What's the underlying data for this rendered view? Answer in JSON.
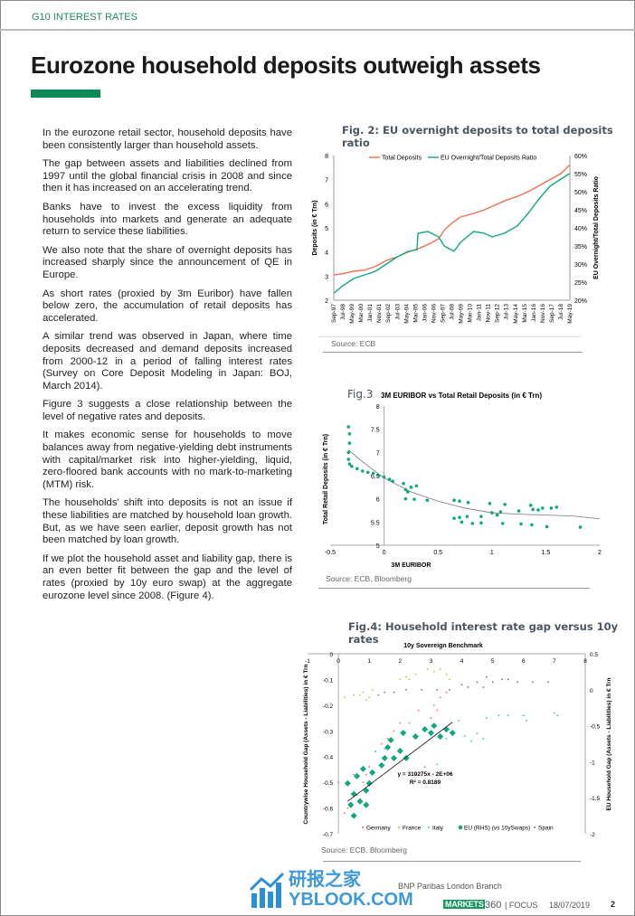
{
  "header": {
    "section": "G10 INTEREST RATES"
  },
  "page_title": "Eurozone household deposits outweigh assets",
  "colors": {
    "accent": "#0b8a58",
    "section": "#1a8a5e",
    "orange": "#f07050",
    "teal": "#10a880",
    "france": "#b0cc40",
    "spain": "#707070"
  },
  "paragraphs": [
    "In the eurozone retail sector, household deposits have been consistently larger than household assets.",
    "The gap between assets and liabilities declined from 1997 until the global financial crisis in 2008 and since then it has increased on an accelerating trend.",
    "Banks have to invest the excess liquidity from households into markets and generate an adequate return to service these liabilities.",
    "We also note that the share of overnight deposits has increased sharply since the announcement of QE in Europe.",
    "As short rates (proxied by 3m Euribor) have fallen below zero, the accumulation of retail deposits has accelerated.",
    "A similar trend was observed in Japan, where time deposits decreased and demand deposits increased from 2000-12 in a period of falling interest rates (Survey on Core Deposit Modeling in Japan: BOJ, March 2014).",
    "Figure 3 suggests a close relationship between the level of negative rates and deposits.",
    "It makes economic sense for households to move balances away from negative-yielding debt instruments with capital/market risk into higher-yielding, liquid, zero-floored bank accounts with no mark-to-marketing (MTM) risk.",
    "The households' shift into deposits is not an issue if these liabilities are matched by household loan growth. But, as we have seen earlier, deposit growth has not been matched by loan growth.",
    "If we plot the household asset and liability gap, there is an even better fit between the gap and the level of rates (proxied by 10y euro swap) at the aggregate eurozone level since 2008. (Figure 4)."
  ],
  "fig2": {
    "title": "Fig. 2: EU overnight deposits to total deposits ratio",
    "source": "Source: ECB"
  },
  "fig3": {
    "label": "Fig.3",
    "source": "Source: ECB, Bloomberg"
  },
  "fig4": {
    "title": "Fig.4: Household interest rate gap versus 10y rates",
    "source": "Source: ECB, Bloomberg"
  },
  "chart_data": [
    {
      "type": "line",
      "ylabel": "Deposits (in € Trn)",
      "y2label": "EU Overnight/Total Deposits Ratio",
      "ylim": [
        2,
        8
      ],
      "y2lim": [
        20,
        60
      ],
      "yticks": [
        "2",
        "3",
        "4",
        "5",
        "6",
        "7",
        "8"
      ],
      "y2ticks": [
        "20%",
        "25%",
        "30%",
        "35%",
        "40%",
        "45%",
        "50%",
        "55%",
        "60%"
      ],
      "xticks": [
        "Sep-97",
        "Jul-98",
        "May-99",
        "Mar-00",
        "Jan-01",
        "Nov-01",
        "Sep-02",
        "Jul-03",
        "May-04",
        "Mar-05",
        "Jan-06",
        "Nov-06",
        "Sep-07",
        "Jul-08",
        "May-09",
        "Mar-10",
        "Jan-11",
        "Nov-11",
        "Sep-12",
        "Jul-13",
        "May-14",
        "Mar-15",
        "Jan-16",
        "Nov-16",
        "Sep-17",
        "Jul-18",
        "May-19"
      ],
      "series": [
        {
          "name": "Total Deposits",
          "axis": "left",
          "x": [
            1997.7,
            1998.5,
            1999.5,
            2000.5,
            2001.5,
            2002.5,
            2003.5,
            2004.5,
            2005.5,
            2006.5,
            2007.3,
            2007.8,
            2008.5,
            2009.3,
            2010.5,
            2011.5,
            2012.5,
            2013.5,
            2014.5,
            2015.5,
            2016.5,
            2017.5,
            2018.5,
            2019.3
          ],
          "y": [
            3.05,
            3.1,
            3.2,
            3.25,
            3.4,
            3.65,
            3.8,
            4.0,
            4.15,
            4.35,
            4.55,
            4.9,
            5.2,
            5.45,
            5.6,
            5.75,
            5.95,
            6.15,
            6.3,
            6.5,
            6.75,
            7.0,
            7.25,
            7.6
          ]
        },
        {
          "name": "EU Overnight/Total Deposits Ratio",
          "axis": "right",
          "x": [
            1997.7,
            1998.5,
            1999.5,
            2000.5,
            2001.5,
            2002.5,
            2003.5,
            2004.5,
            2005.3,
            2005.4,
            2006.3,
            2007.3,
            2007.8,
            2008.7,
            2009.3,
            2010.5,
            2011.5,
            2012.2,
            2013.3,
            2014.5,
            2015.5,
            2016.5,
            2017.5,
            2018.5,
            2019.3
          ],
          "y": [
            22,
            24,
            26,
            27,
            28,
            30,
            32,
            33.5,
            34,
            38.5,
            39,
            37.5,
            35,
            33.5,
            36,
            39,
            38.5,
            37.5,
            38.5,
            40.5,
            44,
            48,
            51.5,
            53.5,
            55
          ]
        }
      ]
    },
    {
      "type": "scatter",
      "title": "3M EURIBOR vs Total Retail Deposits (in € Trn)",
      "xlabel": "3M EURIBOR",
      "ylabel": "Total Retail Deposits (in € Trn)",
      "xlim": [
        -0.5,
        2
      ],
      "ylim": [
        5,
        8
      ],
      "xticks": [
        "-0.5",
        "0",
        "0.5",
        "1",
        "1.5",
        "2"
      ],
      "yticks": [
        "5",
        "5.5",
        "6",
        "6.5",
        "7",
        "7.5",
        "8"
      ],
      "points": [
        [
          -0.33,
          7.55
        ],
        [
          -0.32,
          7.4
        ],
        [
          -0.32,
          7.2
        ],
        [
          -0.33,
          7.0
        ],
        [
          -0.33,
          6.85
        ],
        [
          -0.32,
          6.75
        ],
        [
          -0.3,
          6.7
        ],
        [
          -0.25,
          6.65
        ],
        [
          -0.2,
          6.6
        ],
        [
          -0.15,
          6.57
        ],
        [
          -0.1,
          6.55
        ],
        [
          -0.05,
          6.5
        ],
        [
          0.0,
          6.47
        ],
        [
          0.05,
          6.42
        ],
        [
          0.08,
          6.38
        ],
        [
          0.18,
          6.33
        ],
        [
          0.2,
          6.2
        ],
        [
          0.22,
          6.15
        ],
        [
          0.25,
          6.25
        ],
        [
          0.3,
          6.28
        ],
        [
          0.2,
          6.0
        ],
        [
          0.28,
          5.99
        ],
        [
          0.4,
          5.97
        ],
        [
          0.65,
          5.97
        ],
        [
          0.7,
          5.95
        ],
        [
          0.78,
          5.92
        ],
        [
          0.65,
          5.58
        ],
        [
          0.7,
          5.6
        ],
        [
          0.72,
          5.5
        ],
        [
          0.77,
          5.62
        ],
        [
          0.82,
          5.47
        ],
        [
          0.9,
          5.62
        ],
        [
          0.9,
          5.48
        ],
        [
          0.98,
          5.9
        ],
        [
          1.0,
          5.7
        ],
        [
          1.05,
          5.65
        ],
        [
          1.1,
          5.47
        ],
        [
          1.12,
          5.88
        ],
        [
          1.08,
          5.72
        ],
        [
          1.25,
          5.74
        ],
        [
          1.27,
          5.46
        ],
        [
          1.36,
          5.86
        ],
        [
          1.38,
          5.77
        ],
        [
          1.43,
          5.76
        ],
        [
          1.47,
          5.8
        ],
        [
          1.55,
          5.8
        ],
        [
          1.6,
          5.82
        ],
        [
          1.37,
          5.44
        ],
        [
          1.51,
          5.4
        ],
        [
          1.82,
          5.39
        ]
      ],
      "trendline": [
        [
          -0.33,
          7.05
        ],
        [
          -0.2,
          6.8
        ],
        [
          0,
          6.45
        ],
        [
          0.25,
          6.15
        ],
        [
          0.5,
          5.95
        ],
        [
          0.75,
          5.8
        ],
        [
          1,
          5.7
        ],
        [
          1.25,
          5.67
        ],
        [
          1.5,
          5.65
        ],
        [
          1.75,
          5.63
        ],
        [
          2,
          5.57
        ]
      ]
    },
    {
      "type": "scatter",
      "title": "10y Sovereign Benchmark",
      "ylabel": "Countrywise Household Gap (Assets - Liabilities) in € Trn",
      "y2label": "EU Household Gap (Assets - Liabilities) in € Trn",
      "xlim": [
        -1,
        8
      ],
      "ylim": [
        -0.7,
        0
      ],
      "y2lim": [
        -2,
        0.5
      ],
      "xticks": [
        "-1",
        "0",
        "1",
        "2",
        "3",
        "4",
        "5",
        "6",
        "7",
        "8"
      ],
      "yticks": [
        "-0.7",
        "-0.6",
        "-0.5",
        "-0.4",
        "-0.3",
        "-0.2",
        "-0.1",
        "0"
      ],
      "y2ticks": [
        "-2",
        "-1.5",
        "-1",
        "-0.5",
        "0",
        "0.5"
      ],
      "annotation": [
        "y = 310275x - 2E+06",
        "R² = 0.8189"
      ],
      "trendline": [
        [
          0.3,
          -1.55
        ],
        [
          3.7,
          -0.45
        ]
      ],
      "series": [
        {
          "name": "Germany",
          "axis": "left",
          "color": "#f07050",
          "points": [
            [
              0,
              -0.5
            ],
            [
              0.2,
              -0.62
            ],
            [
              0.3,
              -0.6
            ],
            [
              0.5,
              -0.47
            ],
            [
              0.6,
              -0.55
            ],
            [
              0.8,
              -0.5
            ],
            [
              1.0,
              -0.44
            ],
            [
              1.2,
              -0.38
            ],
            [
              1.4,
              -0.35
            ],
            [
              1.6,
              -0.33
            ],
            [
              1.8,
              -0.3
            ],
            [
              2.0,
              -0.27
            ],
            [
              2.3,
              -0.27
            ],
            [
              2.6,
              -0.22
            ],
            [
              3.0,
              -0.25
            ],
            [
              3.1,
              -0.2
            ],
            [
              3.3,
              -0.17
            ],
            [
              3.5,
              -0.15
            ],
            [
              0.4,
              -0.58
            ],
            [
              0.9,
              -0.47
            ],
            [
              2.8,
              -0.3
            ],
            [
              3.2,
              -0.22
            ]
          ]
        },
        {
          "name": "France",
          "axis": "left",
          "color": "#b0cc40",
          "points": [
            [
              0.2,
              -0.17
            ],
            [
              0.5,
              -0.16
            ],
            [
              0.7,
              -0.16
            ],
            [
              0.8,
              -0.15
            ],
            [
              0.9,
              -0.18
            ],
            [
              1.1,
              -0.14
            ],
            [
              2.0,
              -0.1
            ],
            [
              2.2,
              -0.09
            ],
            [
              2.3,
              -0.1
            ],
            [
              2.5,
              -0.08
            ],
            [
              2.9,
              -0.06
            ],
            [
              3.1,
              -0.07
            ],
            [
              3.3,
              -0.06
            ],
            [
              3.5,
              -0.08
            ],
            [
              3.6,
              -0.1
            ],
            [
              1.0,
              -0.17
            ]
          ]
        },
        {
          "name": "Italy",
          "axis": "left",
          "color": "#40c0b0",
          "points": [
            [
              1.2,
              -0.38
            ],
            [
              1.5,
              -0.37
            ],
            [
              2.5,
              -0.47
            ],
            [
              2.8,
              -0.44
            ],
            [
              3.2,
              -0.43
            ],
            [
              3.5,
              -0.33
            ],
            [
              3.9,
              -0.26
            ],
            [
              4.1,
              -0.32
            ],
            [
              4.3,
              -0.34
            ],
            [
              4.5,
              -0.31
            ],
            [
              4.7,
              -0.33
            ],
            [
              4.8,
              -0.25
            ],
            [
              5.2,
              -0.24
            ],
            [
              5.5,
              -0.24
            ],
            [
              6.0,
              -0.24
            ],
            [
              6.1,
              -0.26
            ],
            [
              7.0,
              -0.23
            ],
            [
              7.1,
              -0.24
            ]
          ]
        },
        {
          "name": "EU (RHS) (vs 10ySwaps)",
          "axis": "right",
          "color": "#10a880",
          "points": [
            [
              0.3,
              -1.3
            ],
            [
              0.5,
              -1.45
            ],
            [
              0.6,
              -1.2
            ],
            [
              0.7,
              -1.55
            ],
            [
              0.8,
              -1.1
            ],
            [
              0.9,
              -1.4
            ],
            [
              0.9,
              -1.6
            ],
            [
              1.0,
              -1.3
            ],
            [
              1.1,
              -1.15
            ],
            [
              1.4,
              -1.05
            ],
            [
              1.5,
              -0.95
            ],
            [
              1.6,
              -0.8
            ],
            [
              1.7,
              -0.7
            ],
            [
              1.8,
              -0.95
            ],
            [
              2.0,
              -0.85
            ],
            [
              2.1,
              -0.6
            ],
            [
              2.2,
              -0.95
            ],
            [
              2.5,
              -0.65
            ],
            [
              2.8,
              -0.55
            ],
            [
              3.0,
              -0.6
            ],
            [
              3.1,
              -0.5
            ],
            [
              3.3,
              -0.65
            ],
            [
              3.5,
              -0.55
            ],
            [
              3.7,
              -0.6
            ],
            [
              0.5,
              -1.75
            ],
            [
              0.4,
              -1.6
            ]
          ]
        },
        {
          "name": "Spain",
          "axis": "left",
          "color": "#707070",
          "points": [
            [
              1.3,
              -0.16
            ],
            [
              1.5,
              -0.15
            ],
            [
              1.8,
              -0.15
            ],
            [
              2.2,
              -0.14
            ],
            [
              2.7,
              -0.14
            ],
            [
              3.2,
              -0.14
            ],
            [
              3.6,
              -0.14
            ],
            [
              4.0,
              -0.12
            ],
            [
              4.2,
              -0.13
            ],
            [
              4.5,
              -0.11
            ],
            [
              4.7,
              -0.13
            ],
            [
              4.8,
              -0.09
            ],
            [
              5.0,
              -0.11
            ],
            [
              5.3,
              -0.1
            ],
            [
              5.5,
              -0.1
            ],
            [
              5.8,
              -0.11
            ],
            [
              6.3,
              -0.11
            ],
            [
              6.8,
              -0.11
            ]
          ]
        }
      ]
    }
  ],
  "footer": {
    "company": "BNP Paribas London Branch",
    "brand": "MARKETS",
    "brand_suffix": "360",
    "section": "| FOCUS",
    "date": "18/07/2019",
    "page": "2",
    "watermark": "研报之家 YBLOOK.COM"
  }
}
